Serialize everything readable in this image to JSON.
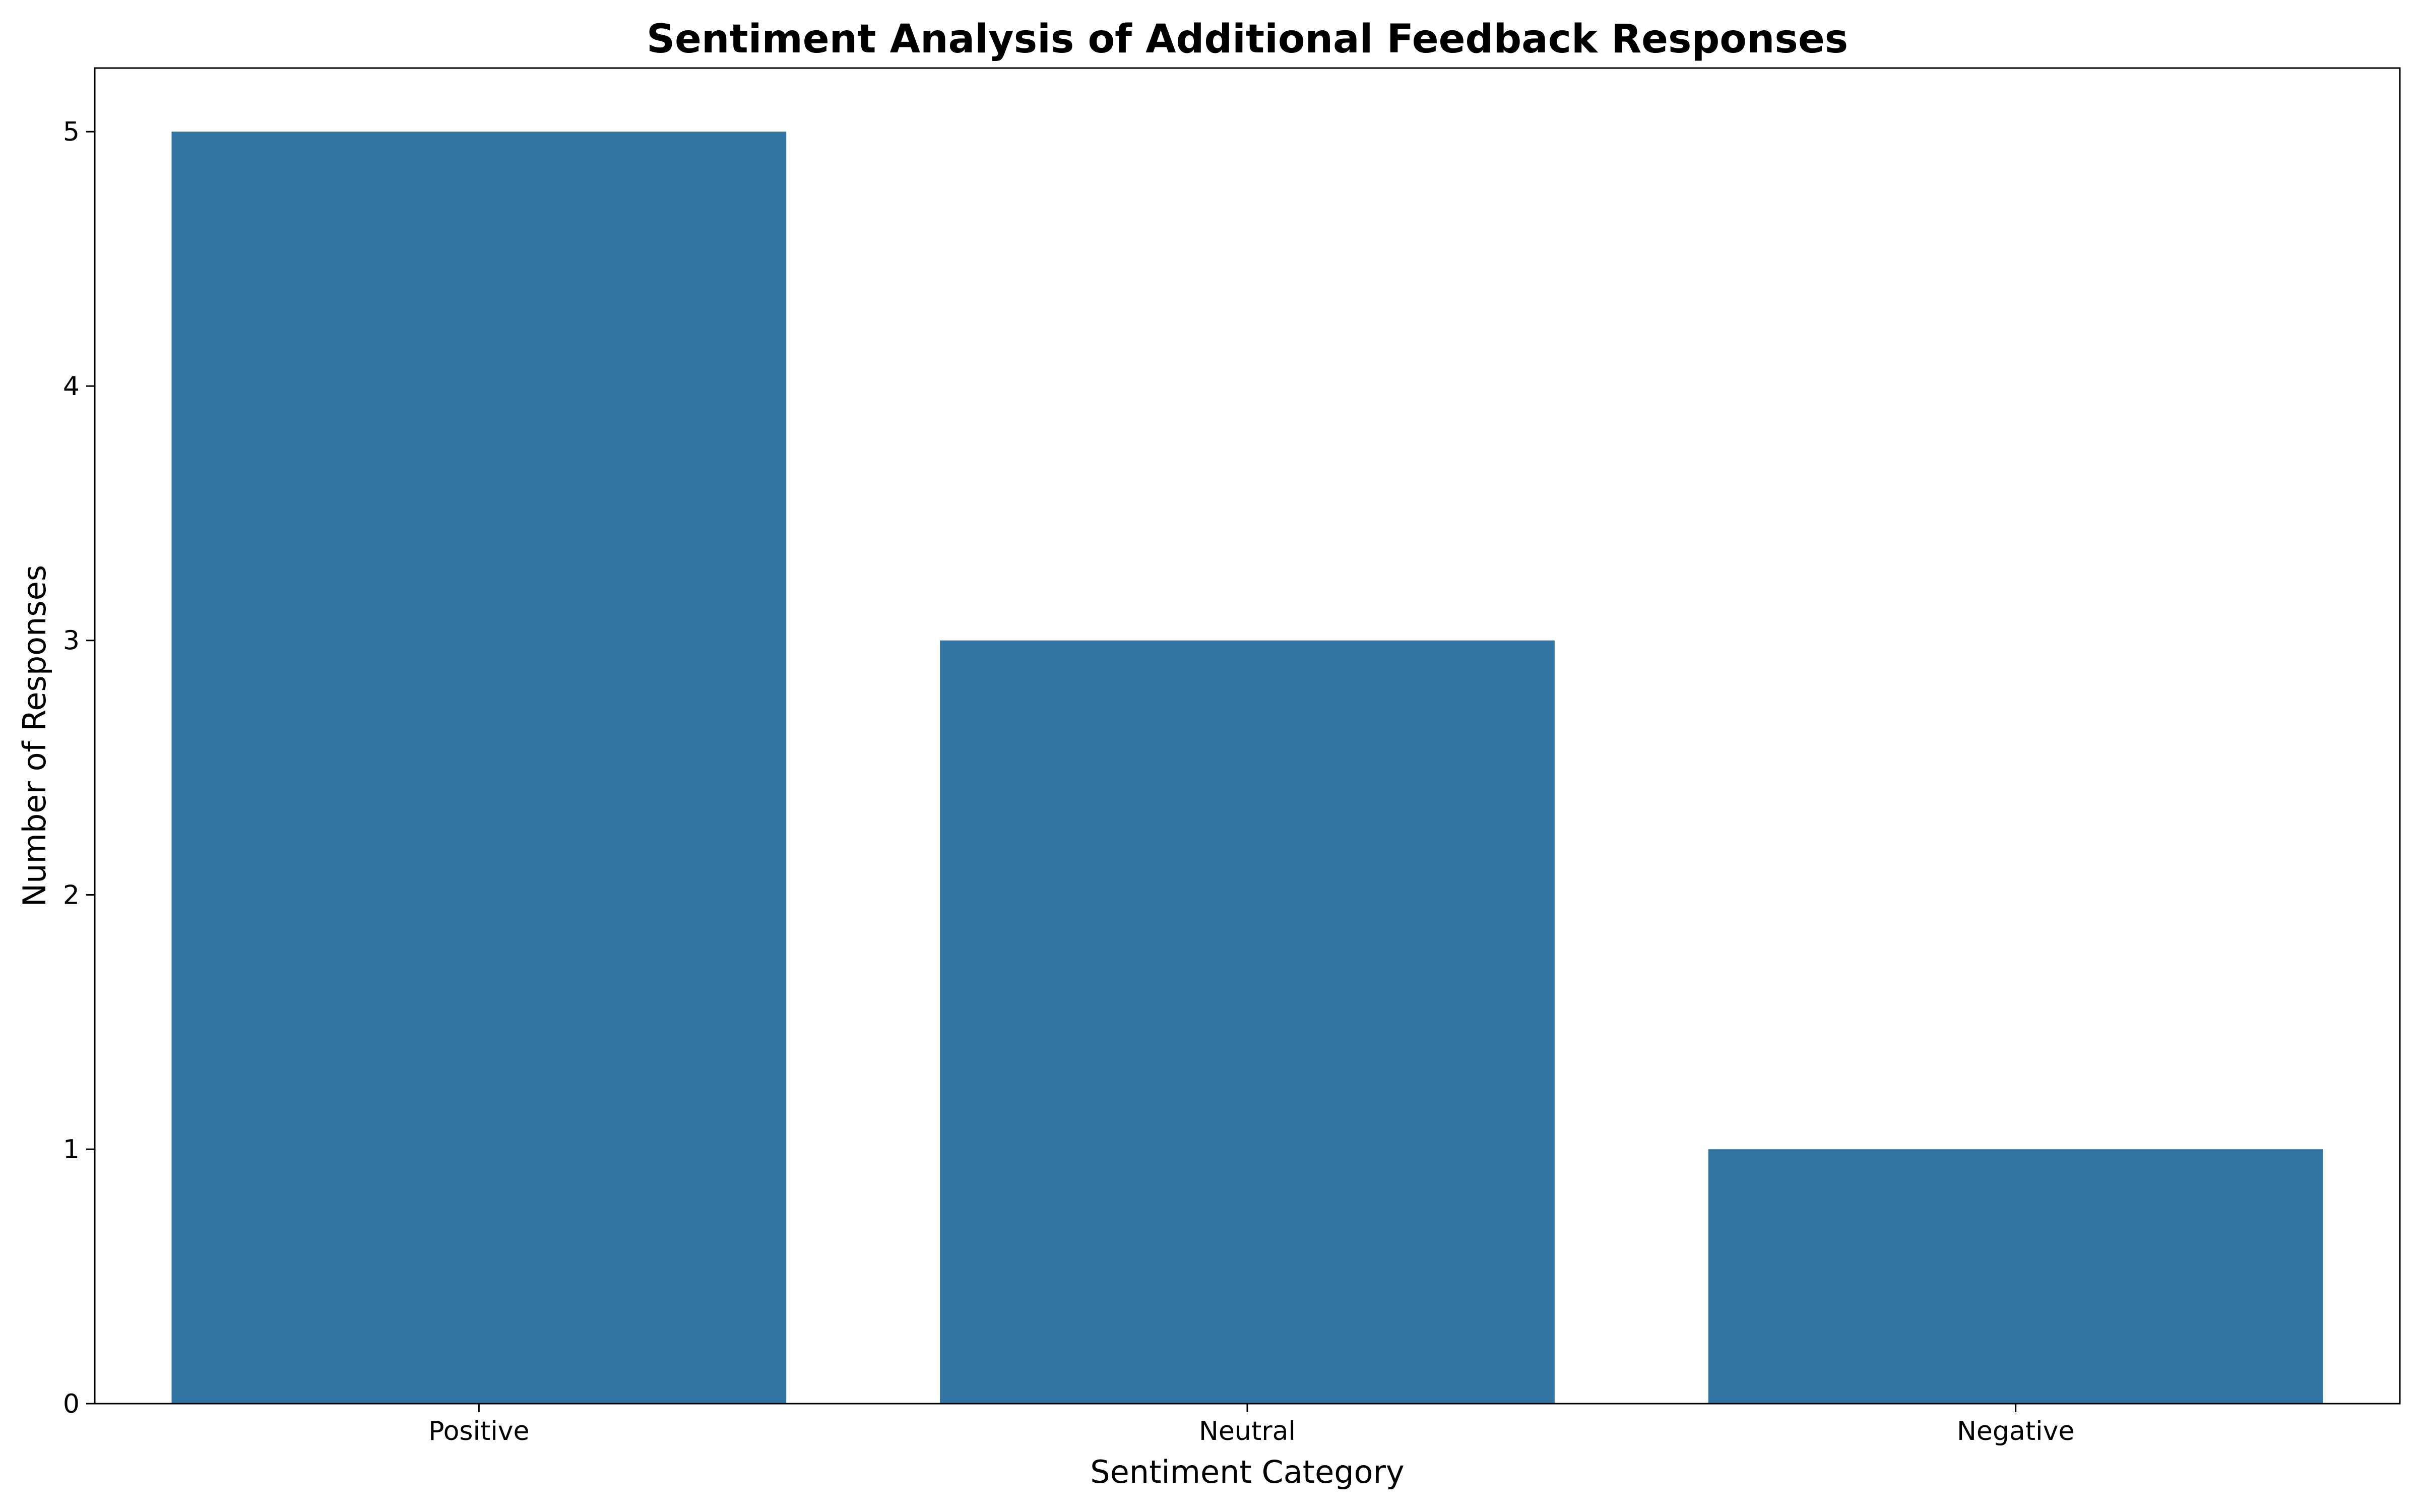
{
  "chart_data": {
    "type": "bar",
    "title": "Sentiment Analysis of Additional Feedback Responses",
    "xlabel": "Sentiment Category",
    "ylabel": "Number of Responses",
    "categories": [
      "Positive",
      "Neutral",
      "Negative"
    ],
    "values": [
      5,
      3,
      1
    ],
    "ylim": [
      0,
      5.25
    ],
    "yticks": [
      0,
      1,
      2,
      3,
      4,
      5
    ],
    "grid": false,
    "legend": "none",
    "colors": {
      "bar": "#3274a1",
      "axis": "#000000",
      "background": "#ffffff"
    }
  }
}
